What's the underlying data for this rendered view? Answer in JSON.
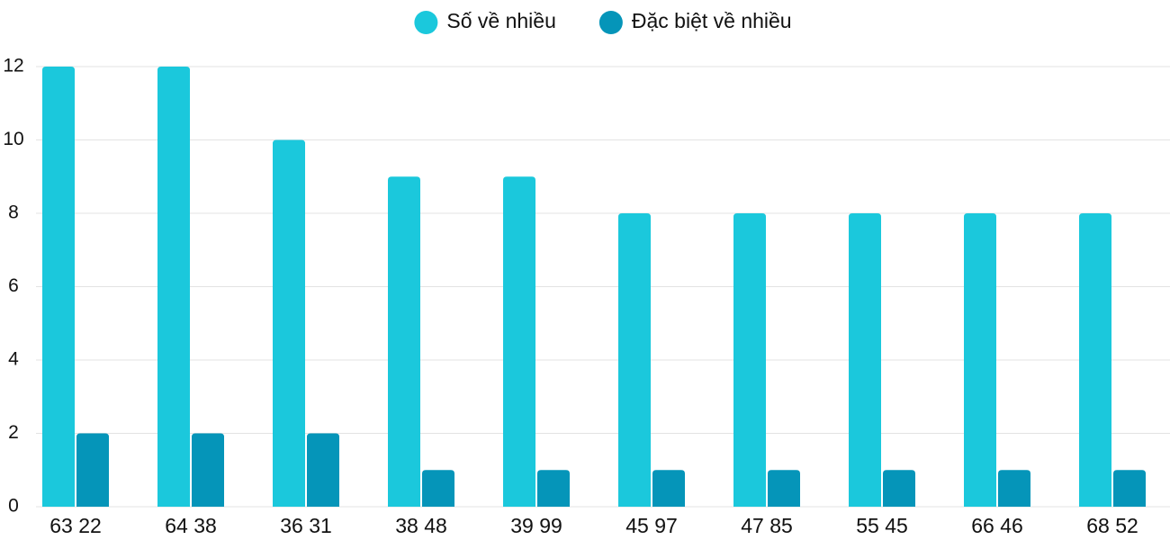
{
  "chart_data": {
    "type": "bar",
    "categories": [
      "63 22",
      "64 38",
      "36 31",
      "38 48",
      "39 99",
      "45 97",
      "47 85",
      "55 45",
      "66 46",
      "68 52"
    ],
    "series": [
      {
        "name": "Số về nhiều",
        "color": "#1bc8dc",
        "values": [
          12,
          12,
          10,
          9,
          9,
          8,
          8,
          8,
          8,
          8
        ]
      },
      {
        "name": "Đặc biệt về nhiều",
        "color": "#0595b9",
        "values": [
          2,
          2,
          2,
          1,
          1,
          1,
          1,
          1,
          1,
          1
        ]
      }
    ],
    "ylim": [
      0,
      12
    ],
    "yticks": [
      0,
      2,
      4,
      6,
      8,
      10,
      12
    ],
    "grid": true,
    "legend": "top"
  }
}
